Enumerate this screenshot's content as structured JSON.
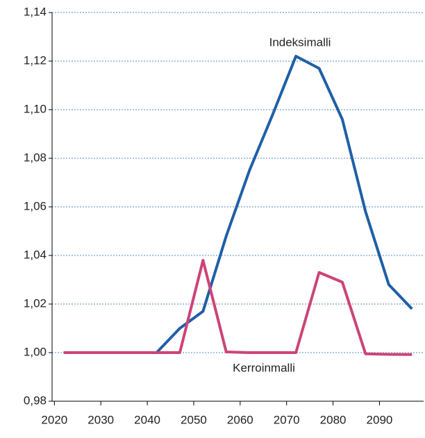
{
  "chart_data": {
    "type": "line",
    "x": [
      2022,
      2027,
      2032,
      2037,
      2042,
      2047,
      2052,
      2057,
      2062,
      2067,
      2072,
      2077,
      2082,
      2087,
      2092,
      2097
    ],
    "series": [
      {
        "name": "Indeksimalli",
        "color": "#1f5fa6",
        "values": [
          1.0,
          1.0,
          1.0,
          1.0,
          1.0,
          1.01,
          1.017,
          1.048,
          1.075,
          1.098,
          1.122,
          1.117,
          1.096,
          1.058,
          1.028,
          1.018
        ]
      },
      {
        "name": "Kerroinmalli",
        "color": "#cc4477",
        "values": [
          1.0,
          1.0,
          1.0,
          1.0,
          1.0,
          1.0,
          1.038,
          1.0003,
          1.0,
          1.0,
          1.0,
          1.033,
          1.029,
          0.9995,
          0.9993,
          0.9992
        ]
      }
    ],
    "xlim": [
      2019.5,
      2099.5
    ],
    "xticks": [
      2020,
      2030,
      2040,
      2050,
      2060,
      2070,
      2080,
      2090
    ],
    "ylim": [
      0.98,
      1.14
    ],
    "yticks": [
      {
        "value": 0.98,
        "label": "0,98"
      },
      {
        "value": 1.0,
        "label": "1,00"
      },
      {
        "value": 1.02,
        "label": "1,02"
      },
      {
        "value": 1.04,
        "label": "1,04"
      },
      {
        "value": 1.06,
        "label": "1,06"
      },
      {
        "value": 1.08,
        "label": "1,08"
      },
      {
        "value": 1.1,
        "label": "1,10"
      },
      {
        "value": 1.12,
        "label": "1,12"
      },
      {
        "value": 1.14,
        "label": "1,14"
      }
    ],
    "grid": true
  }
}
